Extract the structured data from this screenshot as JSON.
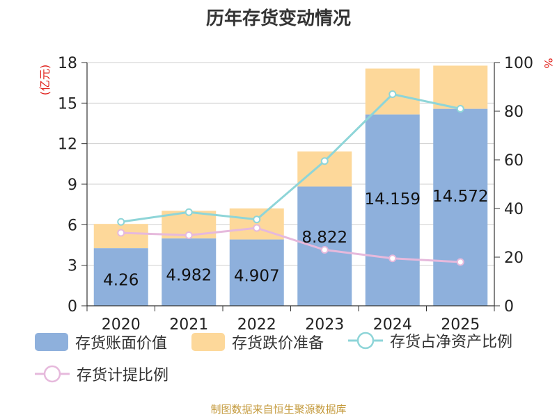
{
  "colors": {
    "book_value": "#8eb0dc",
    "provision": "#fdd89a",
    "net_asset_ratio": "#8ed5d8",
    "provision_ratio": "#e6b9dc",
    "left_unit_color": "#e0201b",
    "source_color": "#c49a3c"
  },
  "chart_data": {
    "type": "bar",
    "title": "历年存货变动情况",
    "categories": [
      "2020",
      "2021",
      "2022",
      "2023",
      "2024",
      "2025"
    ],
    "y_left": {
      "label": "(亿元)",
      "min": 0,
      "max": 18,
      "ticks": [
        0,
        3,
        6,
        9,
        12,
        15,
        18
      ]
    },
    "y_right": {
      "label": "%",
      "min": 0,
      "max": 100,
      "ticks": [
        0,
        20,
        40,
        60,
        80,
        100
      ]
    },
    "grid": true,
    "legend_position": "bottom",
    "series": [
      {
        "name": "存货账面价值",
        "kind": "bar-stack",
        "axis": "left",
        "values": [
          4.26,
          4.982,
          4.907,
          8.822,
          14.159,
          14.572
        ],
        "labels": [
          "4.26",
          "4.982",
          "4.907",
          "8.822",
          "14.159",
          "14.572"
        ]
      },
      {
        "name": "存货跌价准备",
        "kind": "bar-stack",
        "axis": "left",
        "values": [
          1.8,
          2.05,
          2.3,
          2.6,
          3.4,
          3.2
        ]
      },
      {
        "name": "存货占净资产比例",
        "kind": "line",
        "axis": "right",
        "values": [
          34.5,
          38.5,
          35.5,
          59.5,
          87,
          81
        ]
      },
      {
        "name": "存货计提比例",
        "kind": "line",
        "axis": "right",
        "values": [
          30,
          29,
          32,
          23,
          19.5,
          18
        ]
      }
    ]
  },
  "source": "制图数据来自恒生聚源数据库"
}
